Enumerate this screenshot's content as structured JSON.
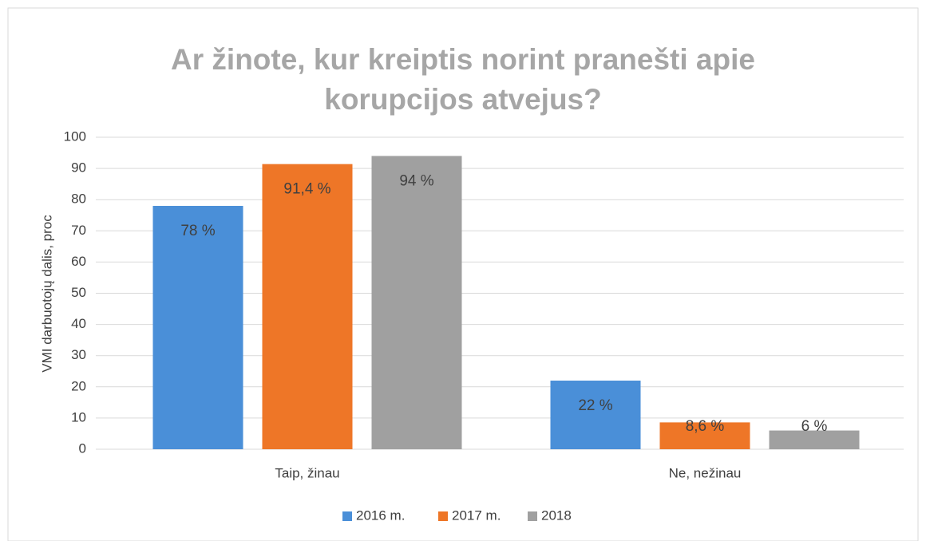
{
  "chart_data": {
    "type": "bar",
    "title": [
      "Ar žinote, kur kreiptis norint pranešti apie",
      "korupcijos atvejus?"
    ],
    "ylabel": "VMI darbuotojų dalis, proc",
    "categories": [
      "Taip, žinau",
      "Ne, nežinau"
    ],
    "series": [
      {
        "name": "2016 m.",
        "color": "#4a8fd8",
        "values": [
          78,
          22
        ],
        "value_labels": [
          "78 %",
          "22 %"
        ]
      },
      {
        "name": "2017 m.",
        "color": "#ee7627",
        "values": [
          91.4,
          8.6
        ],
        "value_labels": [
          "91,4 %",
          "8,6 %"
        ]
      },
      {
        "name": "2018",
        "color": "#a0a0a0",
        "values": [
          94,
          6
        ],
        "value_labels": [
          "94 %",
          "6 %"
        ]
      }
    ],
    "ylim": [
      0,
      100
    ],
    "yticks": [
      0,
      10,
      20,
      30,
      40,
      50,
      60,
      70,
      80,
      90,
      100
    ],
    "grid": true,
    "legend": "bottom"
  }
}
